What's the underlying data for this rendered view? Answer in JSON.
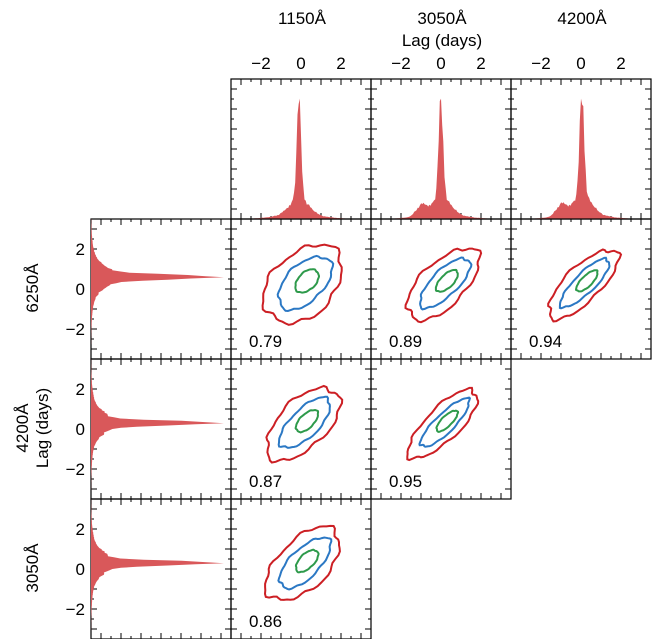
{
  "chart_data": {
    "type": "corner-plot",
    "x_axis_label": "Lag (days)",
    "y_axis_label": "Lag (days)",
    "column_titles": [
      "1150Å",
      "3050Å",
      "4200Å"
    ],
    "row_titles": [
      "6250Å",
      "4200Å",
      "3050Å"
    ],
    "x_tick_labels": [
      "−2",
      "0",
      "2"
    ],
    "y_tick_labels": [
      "2",
      "0",
      "−2"
    ],
    "xlim": [
      -3.5,
      3.5
    ],
    "ylim": [
      -3.5,
      3.5
    ],
    "colors": {
      "histogram": "#d9585a",
      "contour_outer": "#cc1f24",
      "contour_middle": "#2b78c4",
      "contour_inner": "#2e9a4b"
    },
    "top_histograms": [
      {
        "band": "1150Å",
        "peak": -0.1,
        "shoulder": null
      },
      {
        "band": "3050Å",
        "peak": 0.0,
        "shoulder": -1.0
      },
      {
        "band": "4200Å",
        "peak": 0.05,
        "shoulder": -1.0
      }
    ],
    "side_histograms": [
      {
        "band": "6250Å",
        "peak": 0.6
      },
      {
        "band": "4200Å",
        "peak": 0.3
      },
      {
        "band": "3050Å",
        "peak": 0.3
      }
    ],
    "panels": [
      {
        "row": 0,
        "col": 0,
        "correlation": "0.79",
        "x_band": "1150Å",
        "y_band": "6250Å"
      },
      {
        "row": 0,
        "col": 1,
        "correlation": "0.89",
        "x_band": "3050Å",
        "y_band": "6250Å"
      },
      {
        "row": 0,
        "col": 2,
        "correlation": "0.94",
        "x_band": "4200Å",
        "y_band": "6250Å"
      },
      {
        "row": 1,
        "col": 0,
        "correlation": "0.87",
        "x_band": "1150Å",
        "y_band": "4200Å"
      },
      {
        "row": 1,
        "col": 1,
        "correlation": "0.95",
        "x_band": "3050Å",
        "y_band": "4200Å"
      },
      {
        "row": 2,
        "col": 0,
        "correlation": "0.86",
        "x_band": "1150Å",
        "y_band": "3050Å"
      }
    ]
  }
}
